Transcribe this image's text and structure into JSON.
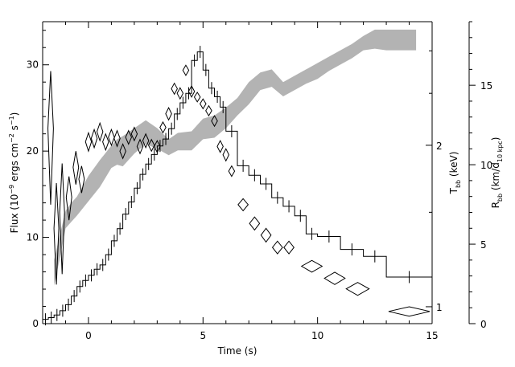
{
  "chart_data": {
    "type": "line",
    "title": "",
    "xlabel": "Time (s)",
    "xlim": [
      -2,
      15
    ],
    "x_ticks": [
      0,
      5,
      10,
      15
    ],
    "axes": {
      "flux": {
        "label_parts": [
          "Flux (10",
          "−9",
          " ergs cm",
          "−2",
          " s",
          "−1",
          ")"
        ],
        "ylim": [
          0,
          35
        ],
        "ticks": [
          0,
          10,
          20,
          30
        ]
      },
      "tbb": {
        "label_parts": [
          "T",
          "bb",
          " (keV)"
        ],
        "scale": "log",
        "ylim": [
          0.93,
          3.4
        ],
        "ticks": [
          1,
          2
        ]
      },
      "rbb": {
        "label_parts": [
          "R",
          "bb",
          " (km/d",
          "10 kpc",
          ")"
        ],
        "ylim": [
          0,
          19
        ],
        "ticks": [
          0,
          5,
          10,
          15
        ]
      }
    },
    "series": [
      {
        "name": "",
        "axis": "flux",
        "style": "histogram",
        "color": "#000000",
        "edges": [
          -2.0,
          -1.75,
          -1.5,
          -1.25,
          -1.0,
          -0.75,
          -0.5,
          -0.25,
          0.0,
          0.25,
          0.5,
          0.75,
          1.0,
          1.25,
          1.5,
          1.75,
          2.0,
          2.25,
          2.5,
          2.75,
          3.0,
          3.25,
          3.5,
          3.75,
          4.0,
          4.25,
          4.5,
          4.75,
          5.0,
          5.25,
          5.5,
          5.75,
          6.0,
          6.5,
          7.0,
          7.5,
          8.0,
          8.5,
          9.0,
          9.5,
          10.0,
          11.0,
          12.0,
          13.0,
          15.0
        ],
        "values": [
          0.5,
          0.7,
          1.0,
          1.5,
          2.2,
          3.2,
          4.3,
          5.0,
          5.6,
          6.3,
          6.8,
          8.0,
          9.6,
          11.0,
          12.7,
          14.1,
          15.7,
          17.3,
          18.5,
          19.6,
          20.6,
          21.4,
          22.6,
          24.3,
          25.6,
          26.7,
          30.5,
          31.5,
          29.4,
          27.3,
          26.3,
          25.1,
          22.3,
          18.3,
          17.2,
          16.2,
          14.6,
          13.6,
          12.5,
          10.4,
          10.1,
          8.6,
          7.8,
          5.4
        ],
        "error_bar_half": 0.7
      },
      {
        "name": "",
        "axis": "tbb",
        "style": "diamonds",
        "color": "#000000",
        "points": [
          {
            "x": -1.65,
            "y": 2.15,
            "dx": 0.12,
            "dy": 0.6
          },
          {
            "x": -1.4,
            "y": 1.4,
            "dx": 0.1,
            "dy": 0.3
          },
          {
            "x": -1.15,
            "y": 1.5,
            "dx": 0.1,
            "dy": 0.35
          },
          {
            "x": -0.85,
            "y": 1.6,
            "dx": 0.12,
            "dy": 0.15
          },
          {
            "x": -0.55,
            "y": 1.82,
            "dx": 0.12,
            "dy": 0.13
          },
          {
            "x": -0.3,
            "y": 1.73,
            "dx": 0.12,
            "dy": 0.1
          },
          {
            "x": 0.0,
            "y": 2.03,
            "dx": 0.13,
            "dy": 0.08
          },
          {
            "x": 0.25,
            "y": 2.06,
            "dx": 0.13,
            "dy": 0.08
          },
          {
            "x": 0.5,
            "y": 2.12,
            "dx": 0.13,
            "dy": 0.08
          },
          {
            "x": 0.75,
            "y": 2.03,
            "dx": 0.13,
            "dy": 0.07
          },
          {
            "x": 1.0,
            "y": 2.07,
            "dx": 0.13,
            "dy": 0.07
          },
          {
            "x": 1.25,
            "y": 2.06,
            "dx": 0.13,
            "dy": 0.07
          },
          {
            "x": 1.5,
            "y": 1.95,
            "dx": 0.13,
            "dy": 0.06
          },
          {
            "x": 1.75,
            "y": 2.07,
            "dx": 0.13,
            "dy": 0.06
          },
          {
            "x": 2.0,
            "y": 2.1,
            "dx": 0.13,
            "dy": 0.06
          },
          {
            "x": 2.25,
            "y": 1.99,
            "dx": 0.13,
            "dy": 0.06
          },
          {
            "x": 2.5,
            "y": 2.04,
            "dx": 0.13,
            "dy": 0.06
          },
          {
            "x": 2.75,
            "y": 2.0,
            "dx": 0.13,
            "dy": 0.05
          },
          {
            "x": 3.0,
            "y": 1.99,
            "dx": 0.13,
            "dy": 0.05
          },
          {
            "x": 3.25,
            "y": 2.16,
            "dx": 0.13,
            "dy": 0.05
          },
          {
            "x": 3.5,
            "y": 2.29,
            "dx": 0.13,
            "dy": 0.06
          },
          {
            "x": 3.75,
            "y": 2.55,
            "dx": 0.13,
            "dy": 0.06
          },
          {
            "x": 4.0,
            "y": 2.5,
            "dx": 0.13,
            "dy": 0.06
          },
          {
            "x": 4.25,
            "y": 2.76,
            "dx": 0.13,
            "dy": 0.06
          },
          {
            "x": 4.5,
            "y": 2.52,
            "dx": 0.13,
            "dy": 0.06
          },
          {
            "x": 4.75,
            "y": 2.46,
            "dx": 0.13,
            "dy": 0.05
          },
          {
            "x": 5.0,
            "y": 2.39,
            "dx": 0.13,
            "dy": 0.05
          },
          {
            "x": 5.25,
            "y": 2.32,
            "dx": 0.13,
            "dy": 0.05
          },
          {
            "x": 5.5,
            "y": 2.22,
            "dx": 0.13,
            "dy": 0.05
          },
          {
            "x": 5.75,
            "y": 1.99,
            "dx": 0.13,
            "dy": 0.05
          },
          {
            "x": 6.0,
            "y": 1.92,
            "dx": 0.13,
            "dy": 0.05
          },
          {
            "x": 6.25,
            "y": 1.79,
            "dx": 0.13,
            "dy": 0.04
          },
          {
            "x": 6.75,
            "y": 1.55,
            "dx": 0.22,
            "dy": 0.04
          },
          {
            "x": 7.25,
            "y": 1.43,
            "dx": 0.22,
            "dy": 0.04
          },
          {
            "x": 7.75,
            "y": 1.36,
            "dx": 0.22,
            "dy": 0.04
          },
          {
            "x": 8.25,
            "y": 1.29,
            "dx": 0.22,
            "dy": 0.035
          },
          {
            "x": 8.75,
            "y": 1.29,
            "dx": 0.22,
            "dy": 0.035
          },
          {
            "x": 9.75,
            "y": 1.19,
            "dx": 0.45,
            "dy": 0.03
          },
          {
            "x": 10.75,
            "y": 1.13,
            "dx": 0.45,
            "dy": 0.03
          },
          {
            "x": 11.75,
            "y": 1.08,
            "dx": 0.5,
            "dy": 0.03
          },
          {
            "x": 14.0,
            "y": 0.98,
            "dx": 0.9,
            "dy": 0.02
          }
        ]
      },
      {
        "name": "",
        "axis": "rbb",
        "style": "band",
        "color": "#b3b3b3",
        "x": [
          -1.5,
          -1.25,
          -1.0,
          -0.75,
          -0.5,
          0.0,
          0.5,
          1.0,
          1.25,
          1.5,
          2.0,
          2.5,
          3.0,
          3.5,
          3.9,
          4.5,
          5.0,
          5.5,
          6.0,
          6.5,
          7.0,
          7.5,
          8.0,
          8.5,
          9.0,
          9.5,
          10.0,
          10.5,
          11.0,
          11.5,
          12.0,
          12.5,
          13.0,
          13.5,
          14.0,
          14.3
        ],
        "low": [
          2.4,
          4.1,
          6.0,
          6.4,
          6.8,
          7.7,
          8.6,
          9.8,
          10.0,
          9.9,
          10.7,
          11.3,
          11.0,
          10.6,
          10.9,
          10.9,
          11.6,
          11.7,
          12.3,
          13.1,
          13.8,
          14.7,
          14.9,
          14.3,
          14.7,
          15.1,
          15.4,
          15.9,
          16.3,
          16.7,
          17.2,
          17.3,
          17.2,
          17.2,
          17.2,
          17.2
        ],
        "high": [
          4.0,
          5.6,
          7.1,
          7.6,
          8.0,
          9.3,
          10.3,
          11.2,
          11.6,
          11.8,
          12.3,
          12.8,
          12.3,
          11.6,
          12.0,
          12.1,
          12.9,
          13.1,
          13.6,
          14.2,
          15.2,
          15.8,
          16.0,
          15.2,
          15.6,
          16.0,
          16.4,
          16.8,
          17.2,
          17.6,
          18.1,
          18.5,
          18.5,
          18.5,
          18.5,
          18.5
        ]
      }
    ]
  }
}
